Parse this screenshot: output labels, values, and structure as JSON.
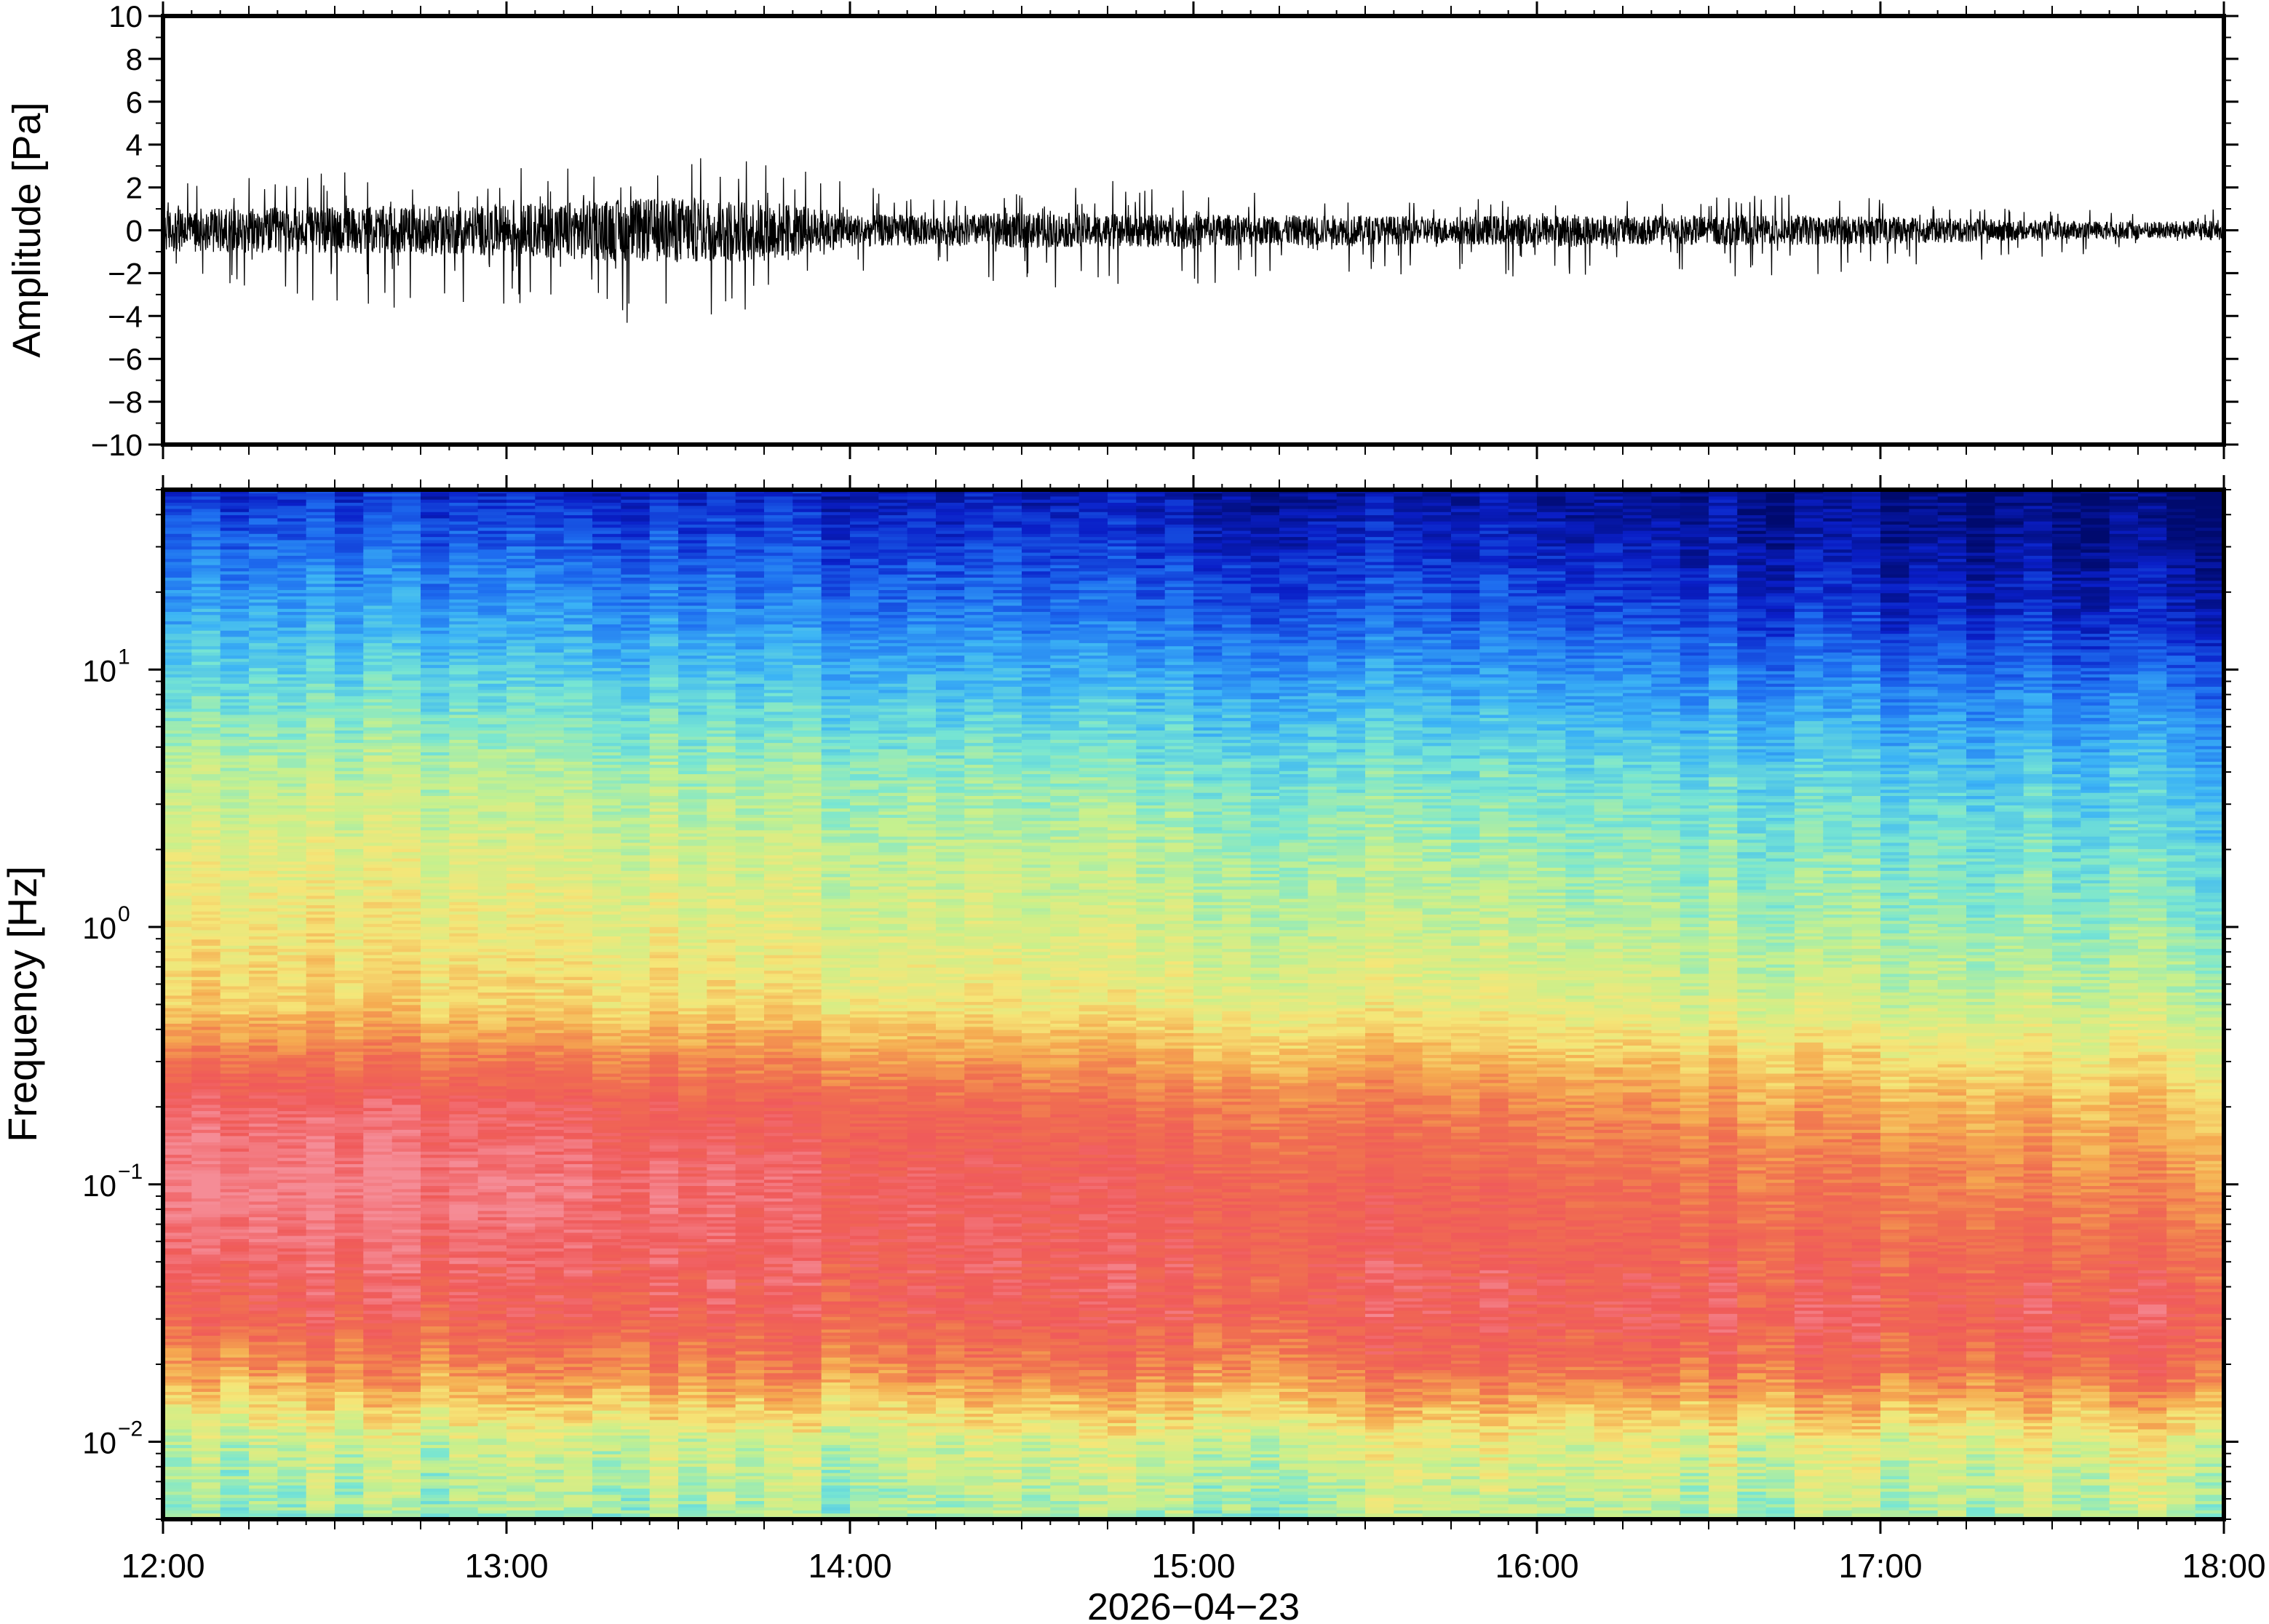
{
  "chart_data": [
    {
      "type": "line",
      "panel": "waveform",
      "ylabel": "Amplitude [Pa]",
      "ylim": [
        -10,
        10
      ],
      "yticks": [
        -10,
        -8,
        -6,
        -4,
        -2,
        0,
        2,
        4,
        6,
        8,
        10
      ],
      "ytick_labels": [
        "−10",
        "−8",
        "−6",
        "−4",
        "−2",
        "0",
        "2",
        "4",
        "6",
        "8",
        "10"
      ],
      "envelope": {
        "x_hours": [
          0,
          0.25,
          0.5,
          0.75,
          1.0,
          1.25,
          1.5,
          1.75,
          2.0,
          2.25,
          2.5,
          2.75,
          3.0,
          3.25,
          3.5,
          3.75,
          4.0,
          4.25,
          4.5,
          4.75,
          5.0,
          5.25,
          5.5,
          5.75,
          6.0
        ],
        "upper": [
          2.2,
          2.5,
          2.8,
          2.4,
          2.8,
          3.5,
          3.3,
          3.6,
          2.2,
          1.5,
          1.8,
          2.4,
          1.9,
          1.8,
          1.6,
          1.4,
          1.8,
          1.5,
          1.6,
          1.7,
          1.5,
          1.3,
          1.1,
          1.0,
          1.3
        ],
        "lower": [
          -2.6,
          -2.8,
          -4.4,
          -3.3,
          -3.5,
          -4.0,
          -5.0,
          -3.6,
          -2.2,
          -1.7,
          -2.8,
          -2.5,
          -2.6,
          -2.3,
          -2.1,
          -2.0,
          -2.4,
          -1.9,
          -2.1,
          -2.3,
          -1.8,
          -1.6,
          -1.3,
          -1.0,
          -0.8
        ],
        "rms": [
          0.7,
          0.75,
          0.8,
          0.8,
          0.85,
          1.0,
          1.1,
          1.05,
          0.55,
          0.5,
          0.6,
          0.55,
          0.55,
          0.5,
          0.5,
          0.45,
          0.55,
          0.5,
          0.5,
          0.5,
          0.45,
          0.4,
          0.32,
          0.28,
          0.35
        ]
      }
    },
    {
      "type": "heatmap",
      "panel": "spectrogram",
      "ylabel": "Frequency [Hz]",
      "yscale": "log",
      "ylim": [
        0.005,
        50
      ],
      "ytick_labels": [
        {
          "value": 0.01,
          "base": "10",
          "exp": "−2"
        },
        {
          "value": 0.1,
          "base": "10",
          "exp": "−1"
        },
        {
          "value": 1,
          "base": "10",
          "exp": "0"
        },
        {
          "value": 10,
          "base": "10",
          "exp": "1"
        }
      ],
      "colormap": [
        "#000a6e",
        "#0a1fc8",
        "#1e6ef0",
        "#3cb4f5",
        "#78e6d2",
        "#c8f08c",
        "#f5e678",
        "#f5aa50",
        "#f07050",
        "#f05a5a",
        "#f58c96"
      ],
      "level_by_log10_freq": {
        "log10f": [
          -2.3,
          -2.0,
          -1.7,
          -1.5,
          -1.2,
          -1.0,
          -0.7,
          -0.5,
          -0.3,
          0.0,
          0.3,
          0.6,
          0.9,
          1.2,
          1.5,
          1.7
        ],
        "start_level": [
          4.4,
          5.0,
          7.4,
          8.6,
          9.6,
          10.0,
          9.4,
          8.0,
          6.5,
          6.0,
          5.6,
          5.0,
          4.0,
          3.0,
          2.0,
          1.2
        ],
        "end_level": [
          4.8,
          5.6,
          8.4,
          8.9,
          8.0,
          7.4,
          6.6,
          5.8,
          5.0,
          4.3,
          3.8,
          3.2,
          2.2,
          1.0,
          0.3,
          0.0
        ]
      }
    }
  ],
  "xaxis": {
    "xlim_hours": [
      0,
      6
    ],
    "tick_labels": [
      "12:00",
      "13:00",
      "14:00",
      "15:00",
      "16:00",
      "17:00",
      "18:00"
    ],
    "xlabel": "2026−04−23"
  }
}
